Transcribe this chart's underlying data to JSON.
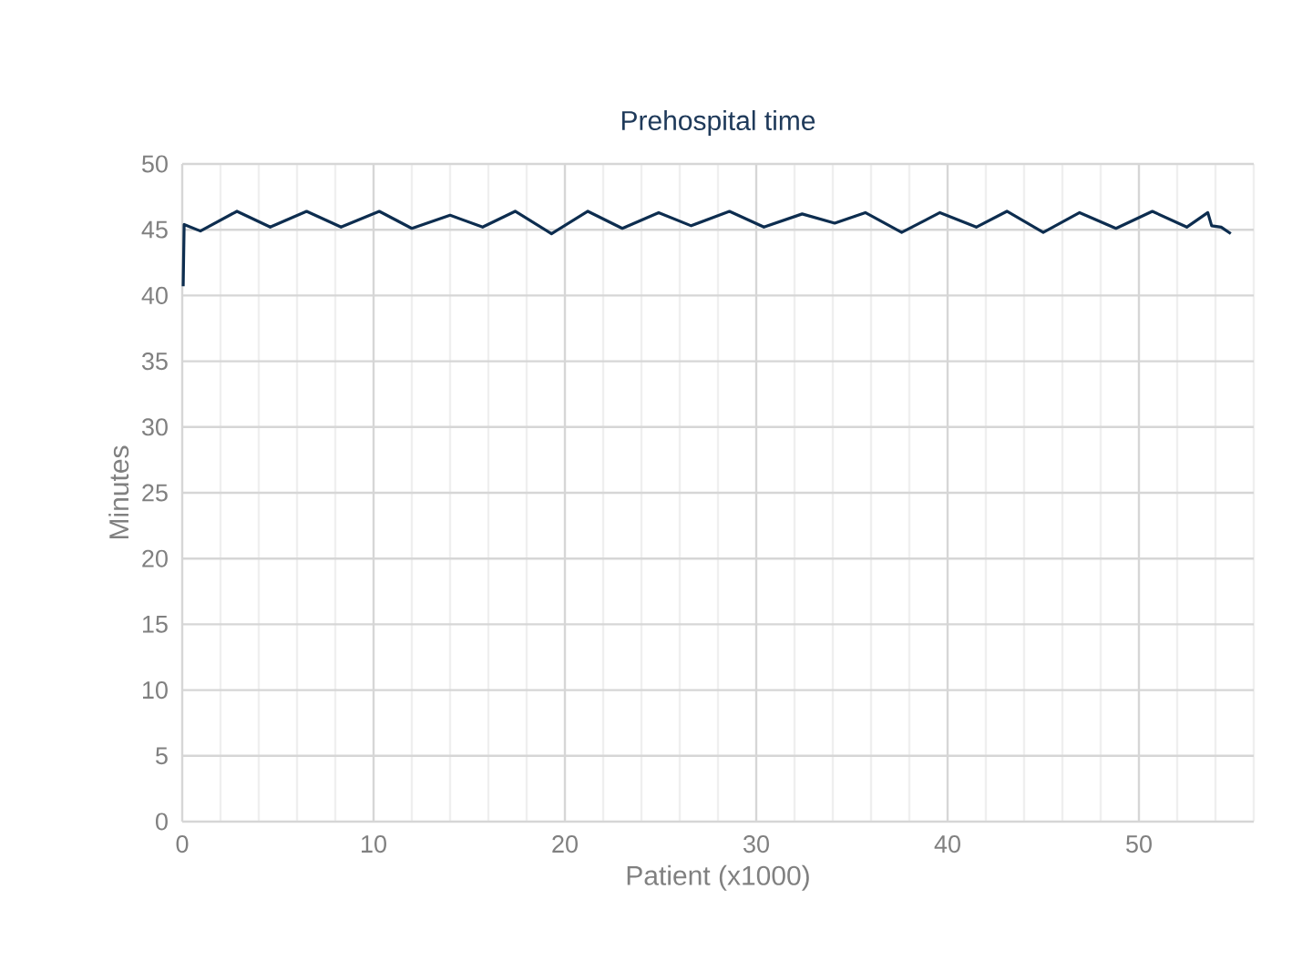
{
  "chart_data": {
    "type": "line",
    "title": "Prehospital time",
    "xlabel": "Patient (x1000)",
    "ylabel": "Minutes",
    "x": [
      0.05,
      0.1,
      0.95,
      2.86,
      4.6,
      6.5,
      8.3,
      10.3,
      12.0,
      14.0,
      15.7,
      17.4,
      19.3,
      21.2,
      23.0,
      24.9,
      26.6,
      28.6,
      30.4,
      32.4,
      34.1,
      35.7,
      37.6,
      39.6,
      41.5,
      43.1,
      45.0,
      46.9,
      48.8,
      50.7,
      52.5,
      53.6,
      53.8,
      54.3,
      54.8
    ],
    "series": [
      {
        "color": "#0d2d4f",
        "values": [
          40.7,
          45.4,
          44.9,
          46.4,
          45.2,
          46.4,
          45.2,
          46.4,
          45.1,
          46.1,
          45.2,
          46.4,
          44.7,
          46.4,
          45.1,
          46.3,
          45.3,
          46.4,
          45.2,
          46.2,
          45.5,
          46.3,
          44.8,
          46.3,
          45.2,
          46.4,
          44.8,
          46.3,
          45.1,
          46.4,
          45.2,
          46.3,
          45.3,
          45.2,
          44.7
        ]
      }
    ],
    "xlim": [
      0,
      56
    ],
    "ylim": [
      0,
      50
    ],
    "xticks": [
      0,
      {
        "value": 2,
        "label": null
      },
      {
        "value": 4,
        "label": null
      },
      {
        "value": 6,
        "label": null
      },
      {
        "value": 8,
        "label": null
      },
      10,
      {
        "value": 12,
        "label": null
      },
      {
        "value": 14,
        "label": null
      },
      {
        "value": 16,
        "label": null
      },
      {
        "value": 18,
        "label": null
      },
      20,
      {
        "value": 22,
        "label": null
      },
      {
        "value": 24,
        "label": null
      },
      {
        "value": 26,
        "label": null
      },
      {
        "value": 28,
        "label": null
      },
      30,
      {
        "value": 32,
        "label": null
      },
      {
        "value": 34,
        "label": null
      },
      {
        "value": 36,
        "label": null
      },
      {
        "value": 38,
        "label": null
      },
      40,
      {
        "value": 42,
        "label": null
      },
      {
        "value": 44,
        "label": null
      },
      {
        "value": 46,
        "label": null
      },
      {
        "value": 48,
        "label": null
      },
      50,
      {
        "value": 52,
        "label": null
      },
      {
        "value": 54,
        "label": null
      },
      {
        "value": 56,
        "label": null
      }
    ],
    "yticks": [
      0,
      5,
      10,
      15,
      20,
      25,
      30,
      35,
      40,
      45,
      50
    ],
    "grid": true,
    "marker": "none",
    "line_style": "solid"
  }
}
